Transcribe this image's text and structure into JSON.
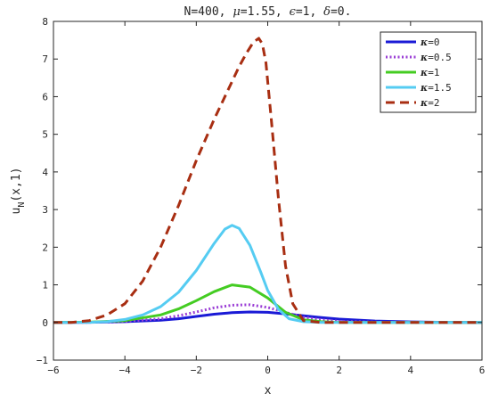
{
  "chart_data": {
    "type": "line",
    "title_parts": [
      {
        "text": "N=400, ",
        "kind": "mono"
      },
      {
        "text": "μ",
        "kind": "greek"
      },
      {
        "text": "=1.55, ",
        "kind": "mono"
      },
      {
        "text": "ϵ",
        "kind": "greek"
      },
      {
        "text": "=1, ",
        "kind": "mono"
      },
      {
        "text": "δ",
        "kind": "greek"
      },
      {
        "text": "=0.",
        "kind": "mono"
      }
    ],
    "xlabel": "x",
    "ylabel_main": "u",
    "ylabel_sub": "N",
    "ylabel_rest": "(x,1)",
    "xlim": [
      -6,
      6
    ],
    "ylim": [
      -1,
      8
    ],
    "xticks": [
      -6,
      -4,
      -2,
      0,
      2,
      4,
      6
    ],
    "yticks": [
      -1,
      0,
      1,
      2,
      3,
      4,
      5,
      6,
      7,
      8
    ],
    "grid": false,
    "legend_position": "top-right",
    "series": [
      {
        "name": "κ=0",
        "legend_greek": "κ",
        "legend_value": "=0",
        "color": "#1a1ad6",
        "style": "solid",
        "x": [
          -6,
          -5,
          -4,
          -3,
          -2.5,
          -2,
          -1.5,
          -1,
          -0.5,
          0,
          0.5,
          1,
          1.5,
          2,
          3,
          4,
          5,
          6
        ],
        "y": [
          0,
          0.005,
          0.02,
          0.06,
          0.1,
          0.16,
          0.22,
          0.26,
          0.28,
          0.27,
          0.23,
          0.18,
          0.13,
          0.09,
          0.04,
          0.015,
          0.005,
          0
        ]
      },
      {
        "name": "κ=0.5",
        "legend_greek": "κ",
        "legend_value": "=0.5",
        "color": "#9b3fd6",
        "style": "dotted",
        "x": [
          -6,
          -5,
          -4,
          -3,
          -2.5,
          -2,
          -1.5,
          -1,
          -0.5,
          0,
          0.5,
          1,
          1.5,
          2,
          3,
          4,
          5,
          6
        ],
        "y": [
          0,
          0.005,
          0.03,
          0.1,
          0.18,
          0.28,
          0.39,
          0.46,
          0.47,
          0.4,
          0.27,
          0.14,
          0.07,
          0.03,
          0.01,
          0,
          0,
          0
        ]
      },
      {
        "name": "κ=1",
        "legend_greek": "κ",
        "legend_value": "=1",
        "color": "#44cc22",
        "style": "solid",
        "x": [
          -6,
          -5,
          -4,
          -3,
          -2.5,
          -2,
          -1.5,
          -1,
          -0.5,
          0,
          0.5,
          1,
          1.5,
          2,
          3,
          4,
          5,
          6
        ],
        "y": [
          0,
          0.01,
          0.05,
          0.2,
          0.36,
          0.58,
          0.82,
          1.0,
          0.94,
          0.65,
          0.27,
          0.07,
          0.02,
          0.005,
          0,
          0,
          0,
          0
        ]
      },
      {
        "name": "κ=1.5",
        "legend_greek": "κ",
        "legend_value": "=1.5",
        "color": "#55ccf2",
        "style": "solid",
        "x": [
          -6,
          -5,
          -4.5,
          -4,
          -3.5,
          -3,
          -2.5,
          -2,
          -1.5,
          -1.2,
          -1,
          -0.8,
          -0.5,
          -0.2,
          0,
          0.3,
          0.6,
          1,
          1.5,
          2,
          3,
          4,
          5,
          6
        ],
        "y": [
          0,
          0.005,
          0.02,
          0.08,
          0.2,
          0.42,
          0.8,
          1.38,
          2.1,
          2.48,
          2.58,
          2.5,
          2.05,
          1.35,
          0.85,
          0.35,
          0.1,
          0.02,
          0,
          0,
          0,
          0,
          0,
          0
        ]
      },
      {
        "name": "κ=2",
        "legend_greek": "κ",
        "legend_value": "=2",
        "color": "#a82e12",
        "style": "dashed",
        "x": [
          -6,
          -5.5,
          -5,
          -4.5,
          -4,
          -3.5,
          -3,
          -2.5,
          -2,
          -1.5,
          -1,
          -0.8,
          -0.6,
          -0.4,
          -0.25,
          -0.15,
          -0.05,
          0.1,
          0.3,
          0.5,
          0.7,
          1,
          1.5,
          2,
          3,
          4,
          5,
          6
        ],
        "y": [
          0,
          0,
          0.05,
          0.2,
          0.5,
          1.1,
          2.0,
          3.1,
          4.3,
          5.4,
          6.4,
          6.8,
          7.15,
          7.45,
          7.55,
          7.4,
          6.9,
          5.4,
          3.3,
          1.5,
          0.5,
          0.05,
          0,
          0,
          0,
          0,
          0,
          0
        ]
      }
    ]
  }
}
